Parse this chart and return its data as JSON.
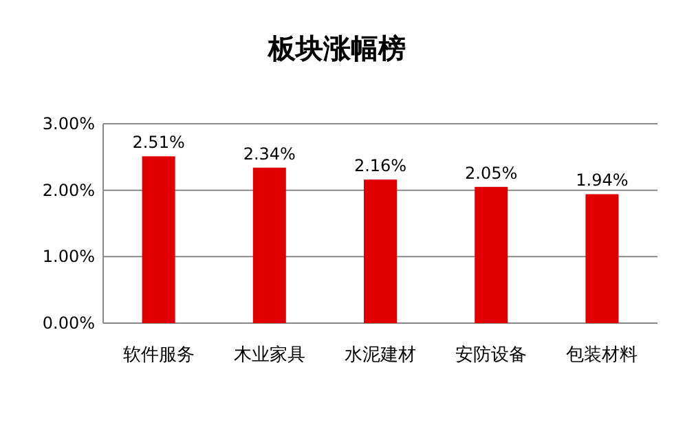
{
  "chart_data": {
    "type": "bar",
    "title": "板块涨幅榜",
    "categories": [
      "软件服务",
      "木业家具",
      "水泥建材",
      "安防设备",
      "包装材料"
    ],
    "values": [
      2.51,
      2.34,
      2.16,
      2.05,
      1.94
    ],
    "value_labels": [
      "2.51%",
      "2.34%",
      "2.16%",
      "2.05%",
      "1.94%"
    ],
    "color": "#e00000",
    "ylim": [
      0,
      3
    ],
    "yticks": [
      {
        "value": 0,
        "label": "0.00%"
      },
      {
        "value": 1,
        "label": "1.00%"
      },
      {
        "value": 2,
        "label": "2.00%"
      },
      {
        "value": 3,
        "label": "3.00%"
      }
    ],
    "grid": "y"
  }
}
